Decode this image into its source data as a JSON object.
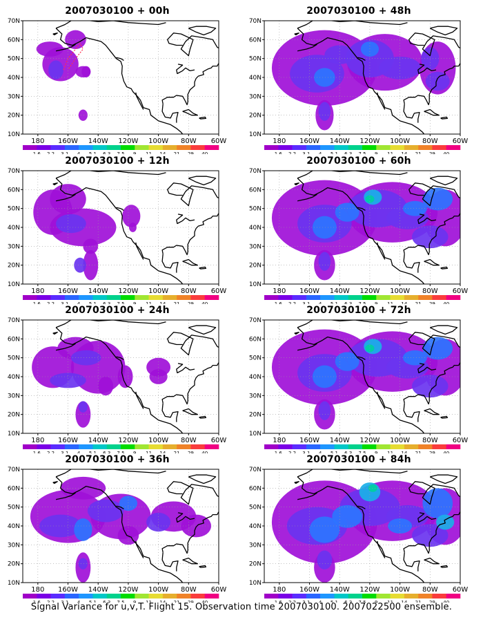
{
  "figure": {
    "footer": "Signal Variance for u,v,T. Flight 15. Observation time 2007030100. 2007022500 ensemble."
  },
  "axes": {
    "lat_ticks": [
      "10N",
      "20N",
      "30N",
      "40N",
      "50N",
      "60N",
      "70N"
    ],
    "lon_ticks": [
      "180",
      "160W",
      "140W",
      "120W",
      "100W",
      "80W",
      "60W"
    ]
  },
  "colorbar": {
    "labels": [
      "1.6",
      "2.2",
      "3.1",
      "4",
      "5.1",
      "6.3",
      "7.5",
      "9",
      "11",
      "14",
      "21",
      "29",
      "40"
    ],
    "colors": [
      "#a000c8",
      "#7a00e6",
      "#5a2cff",
      "#2a66ff",
      "#1e96ff",
      "#00c8c8",
      "#00d28c",
      "#00dc00",
      "#a0e632",
      "#e6dc32",
      "#e6af2d",
      "#f08228",
      "#fa3c3c",
      "#f00082"
    ]
  },
  "panels": [
    {
      "title": "2007030100 + 00h",
      "intensity": 0
    },
    {
      "title": "2007030100 + 48h",
      "intensity": 4
    },
    {
      "title": "2007030100 + 12h",
      "intensity": 1
    },
    {
      "title": "2007030100 + 60h",
      "intensity": 5
    },
    {
      "title": "2007030100 + 24h",
      "intensity": 2
    },
    {
      "title": "2007030100 + 72h",
      "intensity": 5
    },
    {
      "title": "2007030100 + 36h",
      "intensity": 3
    },
    {
      "title": "2007030100 + 84h",
      "intensity": 6
    }
  ]
}
